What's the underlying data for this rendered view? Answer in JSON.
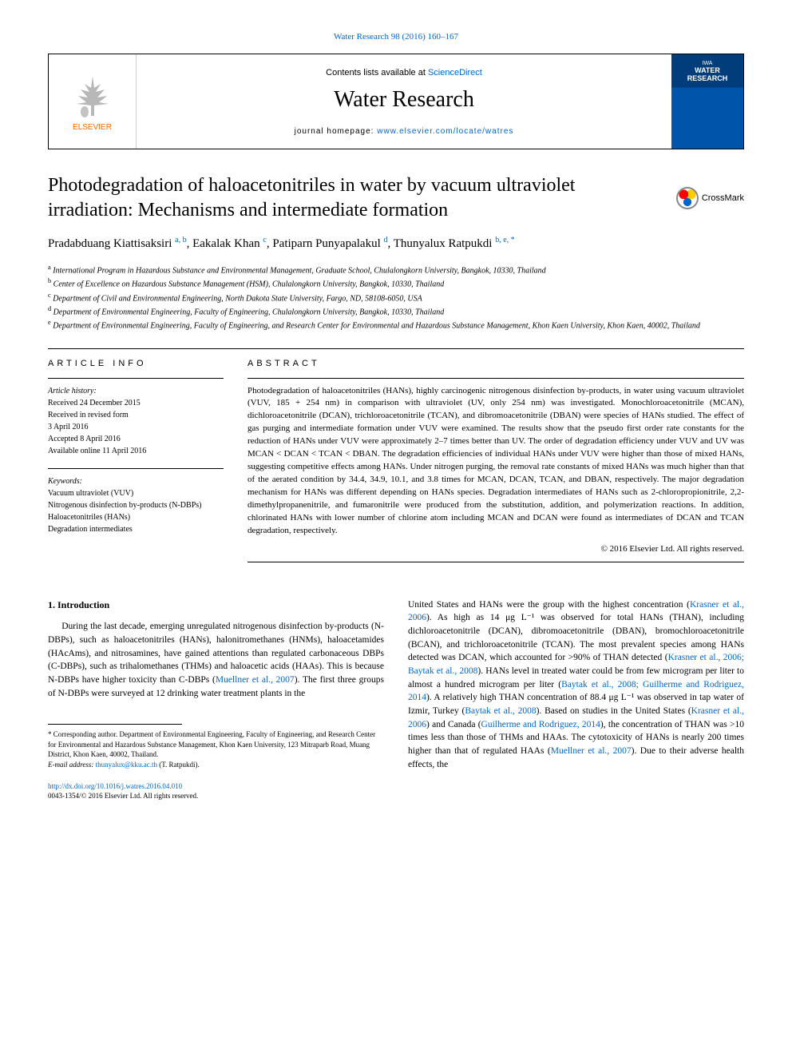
{
  "header": {
    "top_link": "Water Research 98 (2016) 160–167",
    "contents_prefix": "Contents lists available at ",
    "contents_link": "ScienceDirect",
    "journal_name": "Water Research",
    "homepage_prefix": "journal homepage: ",
    "homepage_url": "www.elsevier.com/locate/watres",
    "elsevier_label": "ELSEVIER",
    "cover_top": "IWA",
    "cover_title": "WATER RESEARCH"
  },
  "crossmark_label": "CrossMark",
  "title": "Photodegradation of haloacetonitriles in water by vacuum ultraviolet irradiation: Mechanisms and intermediate formation",
  "authors_html": "Pradabduang Kiattisaksiri <sup>a, b</sup>, Eakalak Khan <sup>c</sup>, Patiparn Punyapalakul <sup>d</sup>, Thunyalux Ratpukdi <sup>b, e, *</sup>",
  "affiliations": [
    "a International Program in Hazardous Substance and Environmental Management, Graduate School, Chulalongkorn University, Bangkok, 10330, Thailand",
    "b Center of Excellence on Hazardous Substance Management (HSM), Chulalongkorn University, Bangkok, 10330, Thailand",
    "c Department of Civil and Environmental Engineering, North Dakota State University, Fargo, ND, 58108-6050, USA",
    "d Department of Environmental Engineering, Faculty of Engineering, Chulalongkorn University, Bangkok, 10330, Thailand",
    "e Department of Environmental Engineering, Faculty of Engineering, and Research Center for Environmental and Hazardous Substance Management, Khon Kaen University, Khon Kaen, 40002, Thailand"
  ],
  "info": {
    "heading": "ARTICLE INFO",
    "history_label": "Article history:",
    "history": [
      "Received 24 December 2015",
      "Received in revised form",
      "3 April 2016",
      "Accepted 8 April 2016",
      "Available online 11 April 2016"
    ],
    "keywords_label": "Keywords:",
    "keywords": [
      "Vacuum ultraviolet (VUV)",
      "Nitrogenous disinfection by-products (N-DBPs)",
      "Haloacetonitriles (HANs)",
      "Degradation intermediates"
    ]
  },
  "abstract": {
    "heading": "ABSTRACT",
    "text": "Photodegradation of haloacetonitriles (HANs), highly carcinogenic nitrogenous disinfection by-products, in water using vacuum ultraviolet (VUV, 185 + 254 nm) in comparison with ultraviolet (UV, only 254 nm) was investigated. Monochloroacetonitrile (MCAN), dichloroacetonitrile (DCAN), trichloroacetonitrile (TCAN), and dibromoacetonitrile (DBAN) were species of HANs studied. The effect of gas purging and intermediate formation under VUV were examined. The results show that the pseudo first order rate constants for the reduction of HANs under VUV were approximately 2–7 times better than UV. The order of degradation efficiency under VUV and UV was MCAN < DCAN < TCAN < DBAN. The degradation efficiencies of individual HANs under VUV were higher than those of mixed HANs, suggesting competitive effects among HANs. Under nitrogen purging, the removal rate constants of mixed HANs was much higher than that of the aerated condition by 34.4, 34.9, 10.1, and 3.8 times for MCAN, DCAN, TCAN, and DBAN, respectively. The major degradation mechanism for HANs was different depending on HANs species. Degradation intermediates of HANs such as 2-chloropropionitrile, 2,2-dimethylpropanenitrile, and fumaronitrile were produced from the substitution, addition, and polymerization reactions. In addition, chlorinated HANs with lower number of chlorine atom including MCAN and DCAN were found as intermediates of DCAN and TCAN degradation, respectively.",
    "copyright": "© 2016 Elsevier Ltd. All rights reserved."
  },
  "intro": {
    "heading": "1. Introduction",
    "col1": "During the last decade, emerging unregulated nitrogenous disinfection by-products (N-DBPs), such as haloacetonitriles (HANs), halonitromethanes (HNMs), haloacetamides (HAcAms), and nitrosamines, have gained attentions than regulated carbonaceous DBPs (C-DBPs), such as trihalomethanes (THMs) and haloacetic acids (HAAs). This is because N-DBPs have higher toxicity than C-DBPs (<span class=\"cite\">Muellner et al., 2007</span>). The first three groups of N-DBPs were surveyed at 12 drinking water treatment plants in the",
    "col2": "United States and HANs were the group with the highest concentration (<span class=\"cite\">Krasner et al., 2006</span>). As high as 14 μg L⁻¹ was observed for total HANs (THAN), including dichloroacetonitrile (DCAN), dibromoacetonitrile (DBAN), bromochloroacetonitrile (BCAN), and trichloroacetonitrile (TCAN). The most prevalent species among HANs detected was DCAN, which accounted for >90% of THAN detected (<span class=\"cite\">Krasner et al., 2006; Baytak et al., 2008</span>). HANs level in treated water could be from few microgram per liter to almost a hundred microgram per liter (<span class=\"cite\">Baytak et al., 2008; Guilherme and Rodriguez, 2014</span>). A relatively high THAN concentration of 88.4 μg L⁻¹ was observed in tap water of Izmir, Turkey (<span class=\"cite\">Baytak et al., 2008</span>). Based on studies in the United States (<span class=\"cite\">Krasner et al., 2006</span>) and Canada (<span class=\"cite\">Guilherme and Rodriguez, 2014</span>), the concentration of THAN was >10 times less than those of THMs and HAAs. The cytotoxicity of HANs is nearly 200 times higher than that of regulated HAAs (<span class=\"cite\">Muellner et al., 2007</span>). Due to their adverse health effects, the"
  },
  "footnote": {
    "corresponding": "* Corresponding author. Department of Environmental Engineering, Faculty of Engineering, and Research Center for Environmental and Hazardous Substance Management, Khon Kaen University, 123 Mitraparb Road, Muang District, Khon Kaen, 40002, Thailand.",
    "email_label": "E-mail address: ",
    "email": "thunyalux@kku.ac.th",
    "email_name": " (T. Ratpukdi)."
  },
  "footer": {
    "doi": "http://dx.doi.org/10.1016/j.watres.2016.04.010",
    "issn_line": "0043-1354/© 2016 Elsevier Ltd. All rights reserved."
  },
  "colors": {
    "link": "#0066cc",
    "elsevier_orange": "#ff6600",
    "cover_blue_dark": "#003d7a",
    "cover_blue": "#0055aa",
    "text": "#000000",
    "bg": "#ffffff"
  }
}
